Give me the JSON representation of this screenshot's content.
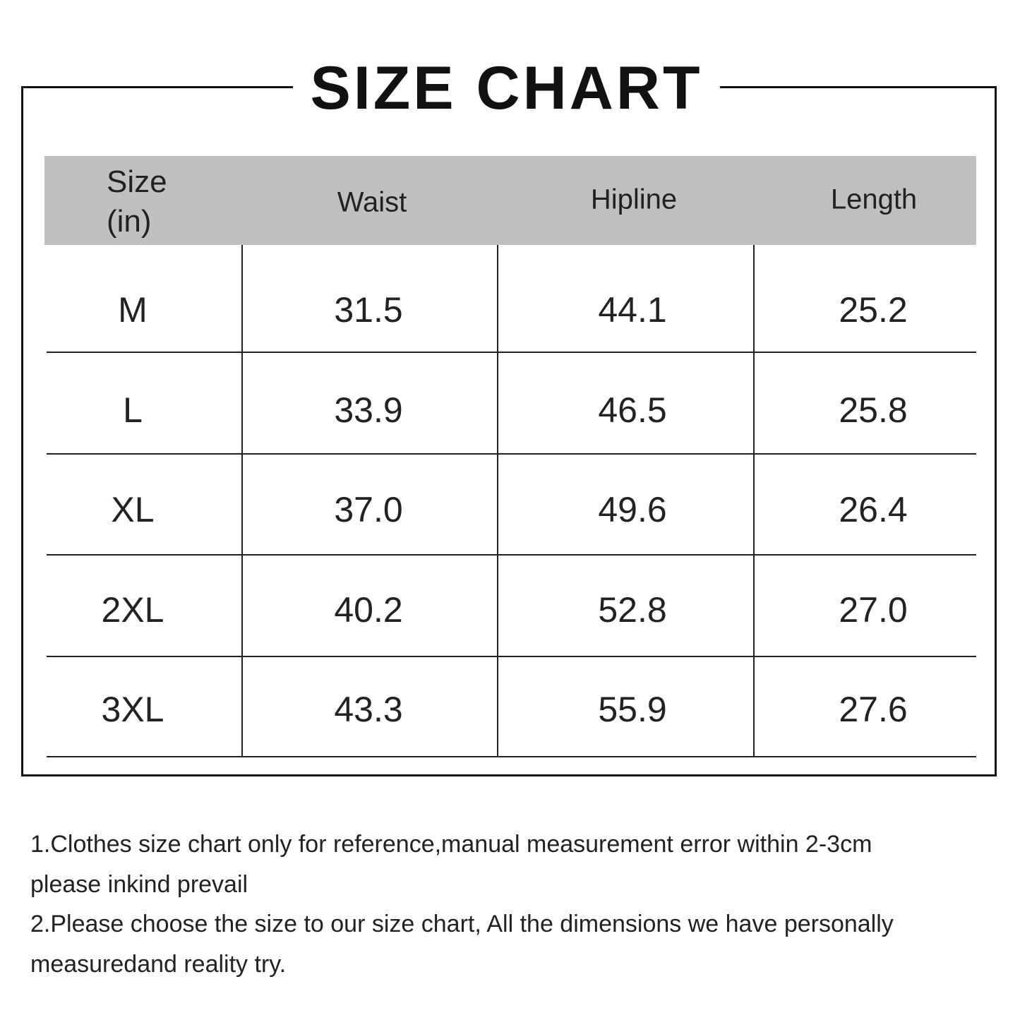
{
  "title": "SIZE CHART",
  "table": {
    "headers": [
      "Size",
      "(in)",
      "Waist",
      "Hipline",
      "Length"
    ],
    "rows": [
      [
        "M",
        "31.5",
        "44.1",
        "25.2"
      ],
      [
        "L",
        "33.9",
        "46.5",
        "25.8"
      ],
      [
        "XL",
        "37.0",
        "49.6",
        "26.4"
      ],
      [
        "2XL",
        "40.2",
        "52.8",
        "27.0"
      ],
      [
        "3XL",
        "43.3",
        "55.9",
        "27.6"
      ]
    ]
  },
  "notes": [
    "1.Clothes size chart only for reference,manual measurement error within 2-3cm",
    "please inkind prevail",
    "2.Please choose the size to our size chart, All the dimensions we have personally",
    "measuredand reality try."
  ]
}
